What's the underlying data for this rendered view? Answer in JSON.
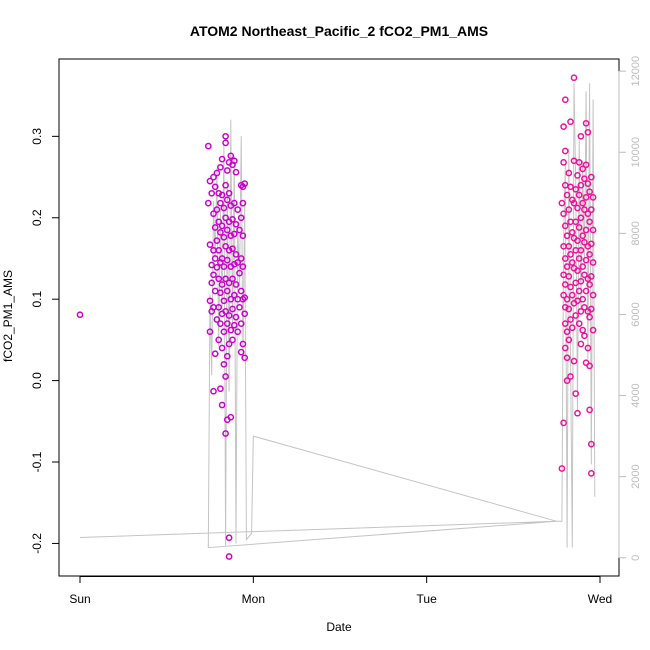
{
  "chart_data": {
    "type": "scatter",
    "title": "ATOM2 Northeast_Pacific_2 fCO2_PM1_AMS",
    "xlabel": "Date",
    "ylabel": "fCO2_PM1_AMS",
    "x_ticks": [
      {
        "value": 0,
        "label": "Sun"
      },
      {
        "value": 1,
        "label": "Mon"
      },
      {
        "value": 2,
        "label": "Tue"
      },
      {
        "value": 3,
        "label": "Wed"
      }
    ],
    "x_unit_note": "days",
    "xlim": [
      -0.13,
      3.15
    ],
    "ylim": [
      -0.24,
      0.395
    ],
    "y_ticks": [
      -0.2,
      -0.1,
      0.0,
      0.1,
      0.2,
      0.3
    ],
    "y_tick_labels": [
      "-0.2",
      "-0.1",
      "0.0",
      "0.1",
      "0.2",
      "0.3"
    ],
    "y2_ticks": [
      0,
      2000,
      4000,
      6000,
      8000,
      10000,
      12000
    ],
    "y2_tick_labels": [
      "0",
      "2000",
      "4000",
      "6000",
      "8000",
      "10000",
      "12000"
    ],
    "y2lim": [
      -450,
      12300
    ],
    "grid": false,
    "series": [
      {
        "kind": "points",
        "colors": [
          "#cc00cc",
          "#ee1199"
        ],
        "points": [
          [
            0.0,
            0.081
          ],
          [
            0.74,
            0.288
          ],
          [
            0.74,
            0.218
          ],
          [
            0.75,
            0.245
          ],
          [
            0.75,
            0.167
          ],
          [
            0.75,
            0.098
          ],
          [
            0.75,
            0.06
          ],
          [
            0.76,
            0.23
          ],
          [
            0.76,
            0.142
          ],
          [
            0.76,
            0.12
          ],
          [
            0.76,
            0.085
          ],
          [
            0.77,
            0.25
          ],
          [
            0.77,
            0.205
          ],
          [
            0.77,
            0.16
          ],
          [
            0.77,
            0.13
          ],
          [
            0.77,
            0.09
          ],
          [
            0.77,
            -0.013
          ],
          [
            0.78,
            0.238
          ],
          [
            0.78,
            0.188
          ],
          [
            0.78,
            0.15
          ],
          [
            0.78,
            0.11
          ],
          [
            0.78,
            0.033
          ],
          [
            0.79,
            0.255
          ],
          [
            0.79,
            0.21
          ],
          [
            0.79,
            0.172
          ],
          [
            0.79,
            0.139
          ],
          [
            0.79,
            0.075
          ],
          [
            0.8,
            0.23
          ],
          [
            0.8,
            0.195
          ],
          [
            0.8,
            0.16
          ],
          [
            0.8,
            0.125
          ],
          [
            0.8,
            0.09
          ],
          [
            0.8,
            0.05
          ],
          [
            0.81,
            0.262
          ],
          [
            0.81,
            0.218
          ],
          [
            0.81,
            0.182
          ],
          [
            0.81,
            0.145
          ],
          [
            0.81,
            0.108
          ],
          [
            0.81,
            0.07
          ],
          [
            0.81,
            -0.01
          ],
          [
            0.82,
            0.272
          ],
          [
            0.82,
            0.228
          ],
          [
            0.82,
            0.19
          ],
          [
            0.82,
            0.15
          ],
          [
            0.82,
            0.118
          ],
          [
            0.82,
            0.082
          ],
          [
            0.82,
            0.04
          ],
          [
            0.82,
            -0.03
          ],
          [
            0.83,
            0.212
          ],
          [
            0.83,
            0.176
          ],
          [
            0.83,
            0.14
          ],
          [
            0.83,
            0.098
          ],
          [
            0.83,
            0.06
          ],
          [
            0.83,
            0.02
          ],
          [
            0.84,
            0.3
          ],
          [
            0.84,
            0.292
          ],
          [
            0.84,
            0.24
          ],
          [
            0.84,
            0.2
          ],
          [
            0.84,
            0.165
          ],
          [
            0.84,
            0.125
          ],
          [
            0.84,
            0.085
          ],
          [
            0.84,
            0.005
          ],
          [
            0.84,
            -0.065
          ],
          [
            0.85,
            0.258
          ],
          [
            0.85,
            0.222
          ],
          [
            0.85,
            0.185
          ],
          [
            0.85,
            0.148
          ],
          [
            0.85,
            0.11
          ],
          [
            0.85,
            0.07
          ],
          [
            0.85,
            0.03
          ],
          [
            0.85,
            -0.048
          ],
          [
            0.86,
            0.268
          ],
          [
            0.86,
            0.23
          ],
          [
            0.86,
            0.195
          ],
          [
            0.86,
            0.16
          ],
          [
            0.86,
            0.12
          ],
          [
            0.86,
            0.08
          ],
          [
            0.86,
            0.045
          ],
          [
            0.86,
            -0.193
          ],
          [
            0.86,
            -0.216
          ],
          [
            0.87,
            0.276
          ],
          [
            0.87,
            0.215
          ],
          [
            0.87,
            0.178
          ],
          [
            0.87,
            0.14
          ],
          [
            0.87,
            0.1
          ],
          [
            0.87,
            0.062
          ],
          [
            0.87,
            -0.045
          ],
          [
            0.88,
            0.265
          ],
          [
            0.88,
            0.198
          ],
          [
            0.88,
            0.162
          ],
          [
            0.88,
            0.125
          ],
          [
            0.88,
            0.088
          ],
          [
            0.88,
            0.05
          ],
          [
            0.89,
            0.27
          ],
          [
            0.89,
            0.218
          ],
          [
            0.89,
            0.18
          ],
          [
            0.89,
            0.143
          ],
          [
            0.89,
            0.105
          ],
          [
            0.89,
            0.068
          ],
          [
            0.9,
            0.256
          ],
          [
            0.9,
            0.192
          ],
          [
            0.9,
            0.155
          ],
          [
            0.9,
            0.118
          ],
          [
            0.9,
            0.078
          ],
          [
            0.91,
            0.21
          ],
          [
            0.91,
            0.145
          ],
          [
            0.91,
            0.1
          ],
          [
            0.91,
            0.06
          ],
          [
            0.92,
            0.185
          ],
          [
            0.92,
            0.132
          ],
          [
            0.92,
            0.09
          ],
          [
            0.93,
            0.24
          ],
          [
            0.93,
            0.2
          ],
          [
            0.93,
            0.15
          ],
          [
            0.93,
            0.11
          ],
          [
            0.93,
            0.07
          ],
          [
            0.93,
            0.035
          ],
          [
            0.94,
            0.238
          ],
          [
            0.94,
            0.218
          ],
          [
            0.94,
            0.178
          ],
          [
            0.94,
            0.14
          ],
          [
            0.94,
            0.1
          ],
          [
            0.94,
            0.045
          ],
          [
            0.95,
            0.242
          ],
          [
            0.95,
            0.102
          ],
          [
            0.95,
            0.082
          ],
          [
            0.95,
            0.028
          ],
          [
            2.78,
            -0.108
          ],
          [
            2.78,
            0.218
          ],
          [
            2.79,
            0.312
          ],
          [
            2.79,
            0.268
          ],
          [
            2.79,
            0.205
          ],
          [
            2.79,
            0.165
          ],
          [
            2.79,
            0.13
          ],
          [
            2.79,
            0.105
          ],
          [
            2.79,
            -0.052
          ],
          [
            2.8,
            0.345
          ],
          [
            2.8,
            0.282
          ],
          [
            2.8,
            0.24
          ],
          [
            2.8,
            0.19
          ],
          [
            2.8,
            0.15
          ],
          [
            2.8,
            0.118
          ],
          [
            2.8,
            0.09
          ],
          [
            2.8,
            0.07
          ],
          [
            2.8,
            0.04
          ],
          [
            2.81,
            0.228
          ],
          [
            2.81,
            0.178
          ],
          [
            2.81,
            0.14
          ],
          [
            2.81,
            0.1
          ],
          [
            2.81,
            0.06
          ],
          [
            2.81,
            0.028
          ],
          [
            2.81,
            0.0
          ],
          [
            2.82,
            0.255
          ],
          [
            2.82,
            0.21
          ],
          [
            2.82,
            0.165
          ],
          [
            2.82,
            0.128
          ],
          [
            2.82,
            0.088
          ],
          [
            2.82,
            0.05
          ],
          [
            2.83,
            0.318
          ],
          [
            2.83,
            0.238
          ],
          [
            2.83,
            0.195
          ],
          [
            2.83,
            0.155
          ],
          [
            2.83,
            0.115
          ],
          [
            2.83,
            0.075
          ],
          [
            2.83,
            0.005
          ],
          [
            2.84,
            0.222
          ],
          [
            2.84,
            0.182
          ],
          [
            2.84,
            0.145
          ],
          [
            2.84,
            0.105
          ],
          [
            2.84,
            0.065
          ],
          [
            2.85,
            0.372
          ],
          [
            2.85,
            0.27
          ],
          [
            2.85,
            0.218
          ],
          [
            2.85,
            0.175
          ],
          [
            2.85,
            0.138
          ],
          [
            2.85,
            0.095
          ],
          [
            2.85,
            0.024
          ],
          [
            2.86,
            0.235
          ],
          [
            2.86,
            0.195
          ],
          [
            2.86,
            0.16
          ],
          [
            2.86,
            0.12
          ],
          [
            2.86,
            0.08
          ],
          [
            2.86,
            -0.016
          ],
          [
            2.87,
            0.252
          ],
          [
            2.87,
            0.212
          ],
          [
            2.87,
            0.172
          ],
          [
            2.87,
            0.135
          ],
          [
            2.87,
            0.098
          ],
          [
            2.87,
            -0.04
          ],
          [
            2.88,
            0.268
          ],
          [
            2.88,
            0.228
          ],
          [
            2.88,
            0.188
          ],
          [
            2.88,
            0.15
          ],
          [
            2.88,
            0.11
          ],
          [
            2.88,
            0.07
          ],
          [
            2.89,
            0.3
          ],
          [
            2.89,
            0.24
          ],
          [
            2.89,
            0.2
          ],
          [
            2.89,
            0.16
          ],
          [
            2.89,
            0.122
          ],
          [
            2.89,
            0.085
          ],
          [
            2.89,
            0.045
          ],
          [
            2.9,
            0.26
          ],
          [
            2.9,
            0.218
          ],
          [
            2.9,
            0.178
          ],
          [
            2.9,
            0.14
          ],
          [
            2.9,
            0.1
          ],
          [
            2.9,
            0.062
          ],
          [
            2.91,
            0.248
          ],
          [
            2.91,
            0.21
          ],
          [
            2.91,
            0.17
          ],
          [
            2.91,
            0.13
          ],
          [
            2.91,
            0.09
          ],
          [
            2.91,
            0.055
          ],
          [
            2.92,
            0.316
          ],
          [
            2.92,
            0.265
          ],
          [
            2.92,
            0.225
          ],
          [
            2.92,
            0.185
          ],
          [
            2.92,
            0.148
          ],
          [
            2.92,
            0.11
          ],
          [
            2.92,
            0.022
          ],
          [
            2.93,
            0.305
          ],
          [
            2.93,
            0.242
          ],
          [
            2.93,
            0.205
          ],
          [
            2.93,
            0.165
          ],
          [
            2.93,
            0.125
          ],
          [
            2.93,
            0.085
          ],
          [
            2.93,
            0.04
          ],
          [
            2.94,
            0.232
          ],
          [
            2.94,
            0.195
          ],
          [
            2.94,
            0.155
          ],
          [
            2.94,
            0.118
          ],
          [
            2.94,
            0.078
          ],
          [
            2.94,
            0.018
          ],
          [
            2.94,
            -0.036
          ],
          [
            2.95,
            0.25
          ],
          [
            2.95,
            0.21
          ],
          [
            2.95,
            0.168
          ],
          [
            2.95,
            0.128
          ],
          [
            2.95,
            0.088
          ],
          [
            2.95,
            -0.078
          ],
          [
            2.95,
            -0.114
          ],
          [
            2.96,
            0.225
          ],
          [
            2.96,
            0.185
          ],
          [
            2.96,
            0.145
          ],
          [
            2.96,
            0.105
          ],
          [
            2.96,
            0.062
          ]
        ]
      },
      {
        "kind": "line",
        "axis": "right",
        "color": "#c4c4c4",
        "points": [
          [
            0.0,
            500
          ],
          [
            2.75,
            900
          ],
          [
            0.74,
            250
          ],
          [
            0.75,
            6500
          ],
          [
            0.76,
            4500
          ],
          [
            0.77,
            8800
          ],
          [
            0.78,
            7400
          ],
          [
            0.79,
            9600
          ],
          [
            0.8,
            5200
          ],
          [
            0.81,
            8600
          ],
          [
            0.82,
            6100
          ],
          [
            0.83,
            10200
          ],
          [
            0.84,
            300
          ],
          [
            0.85,
            9300
          ],
          [
            0.86,
            4100
          ],
          [
            0.87,
            10800
          ],
          [
            0.88,
            5600
          ],
          [
            0.89,
            9900
          ],
          [
            0.9,
            350
          ],
          [
            0.91,
            8300
          ],
          [
            0.92,
            6700
          ],
          [
            0.93,
            10400
          ],
          [
            0.94,
            4900
          ],
          [
            0.95,
            8800
          ],
          [
            0.96,
            450
          ],
          [
            0.99,
            600
          ],
          [
            1.0,
            3000
          ],
          [
            2.75,
            900
          ],
          [
            2.78,
            900
          ],
          [
            2.79,
            7800
          ],
          [
            2.8,
            9700
          ],
          [
            2.81,
            250
          ],
          [
            2.82,
            10100
          ],
          [
            2.83,
            5100
          ],
          [
            2.84,
            250
          ],
          [
            2.85,
            11700
          ],
          [
            2.86,
            9300
          ],
          [
            2.87,
            3600
          ],
          [
            2.88,
            10300
          ],
          [
            2.89,
            6100
          ],
          [
            2.9,
            9800
          ],
          [
            2.91,
            7200
          ],
          [
            2.92,
            11500
          ],
          [
            2.93,
            4900
          ],
          [
            2.94,
            11700
          ],
          [
            2.95,
            2300
          ],
          [
            2.96,
            11300
          ],
          [
            2.97,
            1500
          ]
        ]
      }
    ]
  }
}
